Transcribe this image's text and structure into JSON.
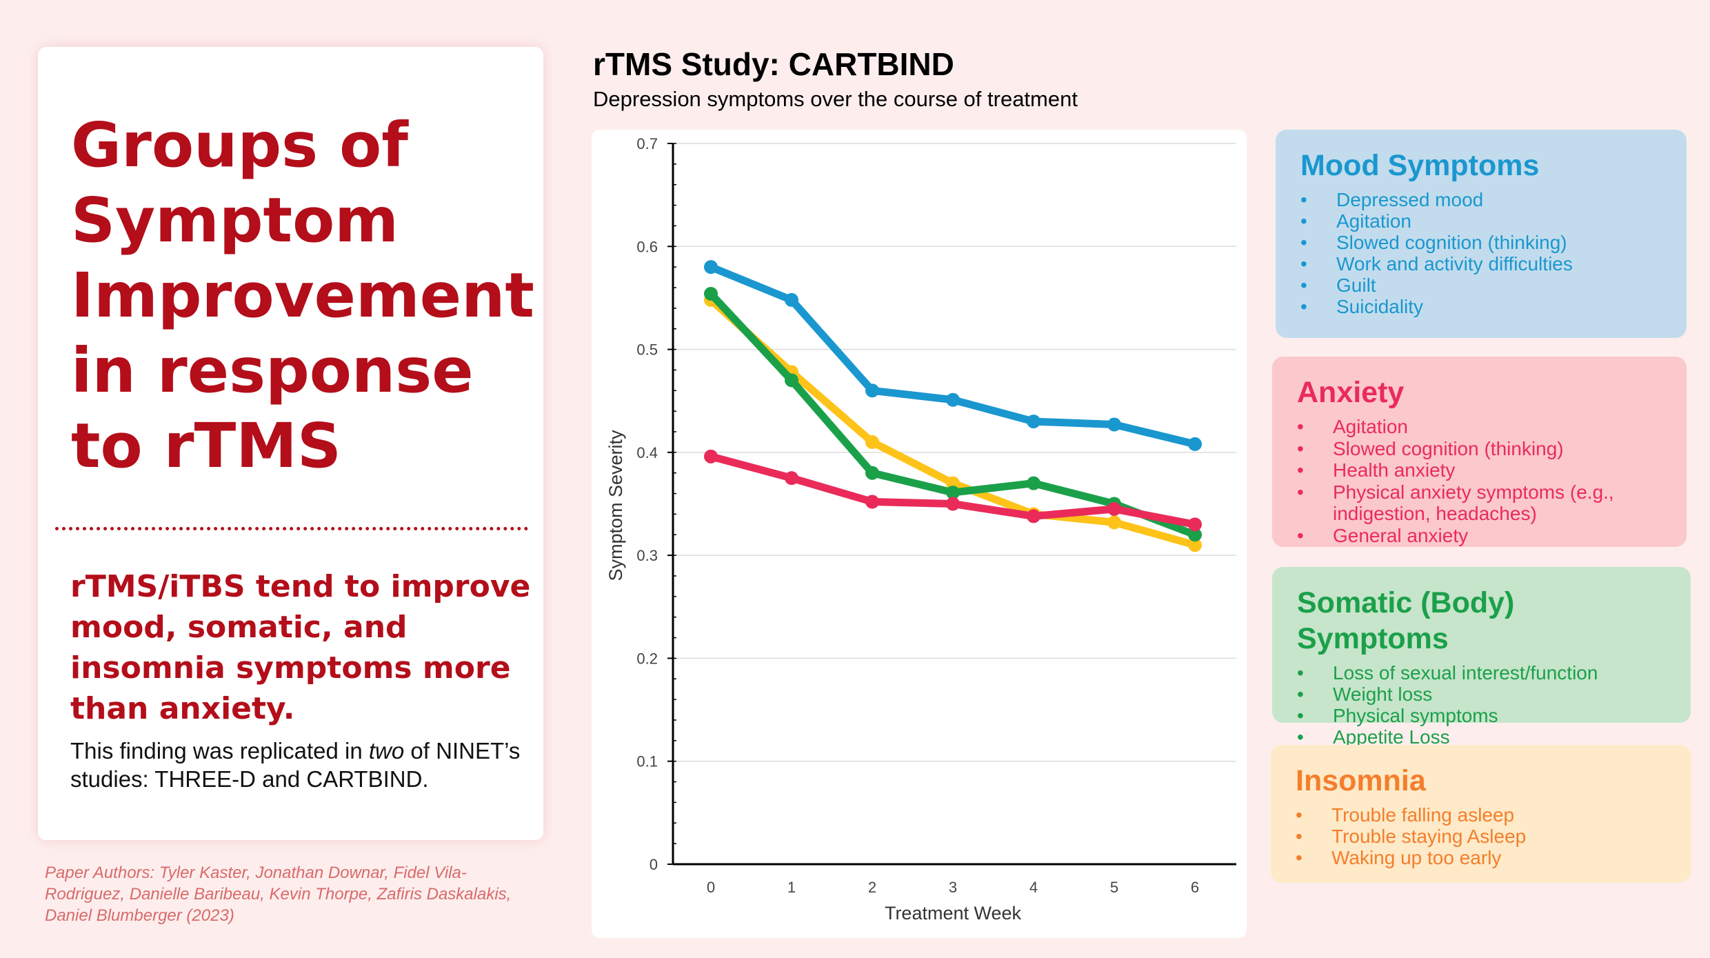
{
  "left": {
    "title": "Groups of Symptom Improvement in response to rTMS",
    "subheading": "rTMS/iTBS tend to improve mood, somatic, and insomnia symptoms more than anxiety.",
    "finding_part1": "This finding was replicated in ",
    "finding_emphasis": "two",
    "finding_part2": " of NINET’s studies: THREE-D and CARTBIND.",
    "citation": "Paper Authors: Tyler Kaster, Jonathan Downar, Fidel Vila-Rodriguez, Danielle Baribeau, Kevin Thorpe, Zafiris Daskalakis, Daniel Blumberger (2023)"
  },
  "chart_data": {
    "type": "line",
    "title": "rTMS Study: CARTBIND",
    "subtitle": "Depression symptoms over the course of treatment",
    "xlabel": "Treatment Week",
    "ylabel": "Symptom Severity",
    "x": [
      0,
      1,
      2,
      3,
      4,
      5,
      6
    ],
    "ylim": [
      0,
      0.7
    ],
    "yticks": [
      "0",
      "0.1",
      "0.2",
      "0.3",
      "0.4",
      "0.5",
      "0.6",
      "0.7"
    ],
    "grid": true,
    "series": [
      {
        "name": "Mood Symptoms",
        "color": "#1a97cf",
        "values": [
          0.58,
          0.548,
          0.46,
          0.451,
          0.43,
          0.427,
          0.408
        ]
      },
      {
        "name": "Insomnia",
        "color": "#fdc319",
        "values": [
          0.548,
          0.478,
          0.41,
          0.37,
          0.34,
          0.332,
          0.31
        ]
      },
      {
        "name": "Somatic (Body) Symptoms",
        "color": "#1ba04a",
        "values": [
          0.554,
          0.47,
          0.38,
          0.361,
          0.37,
          0.35,
          0.32
        ]
      },
      {
        "name": "Anxiety",
        "color": "#ea2b59",
        "values": [
          0.396,
          0.375,
          0.352,
          0.35,
          0.338,
          0.345,
          0.33
        ]
      }
    ]
  },
  "panels": {
    "mood": {
      "title": "Mood Symptoms",
      "color": "#1a97cf",
      "items": [
        "Depressed mood",
        "Agitation",
        "Slowed cognition (thinking)",
        "Work and activity difficulties",
        "Guilt",
        "Suicidality"
      ]
    },
    "anxiety": {
      "title": "Anxiety",
      "color": "#ea2b59",
      "items": [
        "Agitation",
        "Slowed cognition (thinking)",
        "Health anxiety",
        "Physical anxiety symptoms (e.g., indigestion, headaches)",
        "General anxiety"
      ]
    },
    "somatic": {
      "title": "Somatic (Body) Symptoms",
      "color": "#1ba04a",
      "items": [
        "Loss of sexual interest/function",
        "Weight loss",
        "Physical symptoms",
        "Appetite Loss"
      ]
    },
    "insomnia": {
      "title": "Insomnia",
      "color": "#f47e2c",
      "items": [
        "Trouble falling asleep",
        "Trouble staying Asleep",
        "Waking up too early"
      ]
    }
  }
}
